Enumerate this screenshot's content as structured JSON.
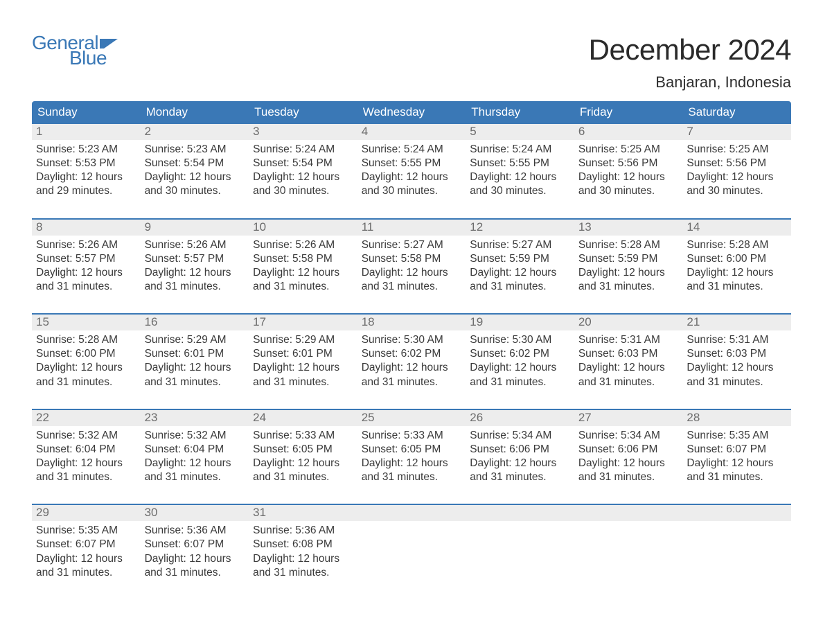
{
  "brand": {
    "line1": "General",
    "line2": "Blue"
  },
  "header": {
    "month_title": "December 2024",
    "location": "Banjaran, Indonesia"
  },
  "colors": {
    "brand_blue": "#3a78b6",
    "header_bg": "#3a78b6",
    "header_fg": "#ffffff",
    "daynum_bg": "#ededed",
    "daynum_fg": "#6c6c6c",
    "text": "#3a3a3a",
    "page_bg": "#ffffff"
  },
  "typography": {
    "month_title_pt": 42,
    "location_pt": 22,
    "dow_pt": 17,
    "daynum_pt": 17,
    "body_pt": 15.5,
    "font_family": "Arial"
  },
  "day_names": [
    "Sunday",
    "Monday",
    "Tuesday",
    "Wednesday",
    "Thursday",
    "Friday",
    "Saturday"
  ],
  "weeks": [
    [
      {
        "n": "1",
        "sunrise": "5:23 AM",
        "sunset": "5:53 PM",
        "daylight": "12 hours and 29 minutes."
      },
      {
        "n": "2",
        "sunrise": "5:23 AM",
        "sunset": "5:54 PM",
        "daylight": "12 hours and 30 minutes."
      },
      {
        "n": "3",
        "sunrise": "5:24 AM",
        "sunset": "5:54 PM",
        "daylight": "12 hours and 30 minutes."
      },
      {
        "n": "4",
        "sunrise": "5:24 AM",
        "sunset": "5:55 PM",
        "daylight": "12 hours and 30 minutes."
      },
      {
        "n": "5",
        "sunrise": "5:24 AM",
        "sunset": "5:55 PM",
        "daylight": "12 hours and 30 minutes."
      },
      {
        "n": "6",
        "sunrise": "5:25 AM",
        "sunset": "5:56 PM",
        "daylight": "12 hours and 30 minutes."
      },
      {
        "n": "7",
        "sunrise": "5:25 AM",
        "sunset": "5:56 PM",
        "daylight": "12 hours and 30 minutes."
      }
    ],
    [
      {
        "n": "8",
        "sunrise": "5:26 AM",
        "sunset": "5:57 PM",
        "daylight": "12 hours and 31 minutes."
      },
      {
        "n": "9",
        "sunrise": "5:26 AM",
        "sunset": "5:57 PM",
        "daylight": "12 hours and 31 minutes."
      },
      {
        "n": "10",
        "sunrise": "5:26 AM",
        "sunset": "5:58 PM",
        "daylight": "12 hours and 31 minutes."
      },
      {
        "n": "11",
        "sunrise": "5:27 AM",
        "sunset": "5:58 PM",
        "daylight": "12 hours and 31 minutes."
      },
      {
        "n": "12",
        "sunrise": "5:27 AM",
        "sunset": "5:59 PM",
        "daylight": "12 hours and 31 minutes."
      },
      {
        "n": "13",
        "sunrise": "5:28 AM",
        "sunset": "5:59 PM",
        "daylight": "12 hours and 31 minutes."
      },
      {
        "n": "14",
        "sunrise": "5:28 AM",
        "sunset": "6:00 PM",
        "daylight": "12 hours and 31 minutes."
      }
    ],
    [
      {
        "n": "15",
        "sunrise": "5:28 AM",
        "sunset": "6:00 PM",
        "daylight": "12 hours and 31 minutes."
      },
      {
        "n": "16",
        "sunrise": "5:29 AM",
        "sunset": "6:01 PM",
        "daylight": "12 hours and 31 minutes."
      },
      {
        "n": "17",
        "sunrise": "5:29 AM",
        "sunset": "6:01 PM",
        "daylight": "12 hours and 31 minutes."
      },
      {
        "n": "18",
        "sunrise": "5:30 AM",
        "sunset": "6:02 PM",
        "daylight": "12 hours and 31 minutes."
      },
      {
        "n": "19",
        "sunrise": "5:30 AM",
        "sunset": "6:02 PM",
        "daylight": "12 hours and 31 minutes."
      },
      {
        "n": "20",
        "sunrise": "5:31 AM",
        "sunset": "6:03 PM",
        "daylight": "12 hours and 31 minutes."
      },
      {
        "n": "21",
        "sunrise": "5:31 AM",
        "sunset": "6:03 PM",
        "daylight": "12 hours and 31 minutes."
      }
    ],
    [
      {
        "n": "22",
        "sunrise": "5:32 AM",
        "sunset": "6:04 PM",
        "daylight": "12 hours and 31 minutes."
      },
      {
        "n": "23",
        "sunrise": "5:32 AM",
        "sunset": "6:04 PM",
        "daylight": "12 hours and 31 minutes."
      },
      {
        "n": "24",
        "sunrise": "5:33 AM",
        "sunset": "6:05 PM",
        "daylight": "12 hours and 31 minutes."
      },
      {
        "n": "25",
        "sunrise": "5:33 AM",
        "sunset": "6:05 PM",
        "daylight": "12 hours and 31 minutes."
      },
      {
        "n": "26",
        "sunrise": "5:34 AM",
        "sunset": "6:06 PM",
        "daylight": "12 hours and 31 minutes."
      },
      {
        "n": "27",
        "sunrise": "5:34 AM",
        "sunset": "6:06 PM",
        "daylight": "12 hours and 31 minutes."
      },
      {
        "n": "28",
        "sunrise": "5:35 AM",
        "sunset": "6:07 PM",
        "daylight": "12 hours and 31 minutes."
      }
    ],
    [
      {
        "n": "29",
        "sunrise": "5:35 AM",
        "sunset": "6:07 PM",
        "daylight": "12 hours and 31 minutes."
      },
      {
        "n": "30",
        "sunrise": "5:36 AM",
        "sunset": "6:07 PM",
        "daylight": "12 hours and 31 minutes."
      },
      {
        "n": "31",
        "sunrise": "5:36 AM",
        "sunset": "6:08 PM",
        "daylight": "12 hours and 31 minutes."
      },
      null,
      null,
      null,
      null
    ]
  ],
  "labels": {
    "sunrise_prefix": "Sunrise: ",
    "sunset_prefix": "Sunset: ",
    "daylight_prefix": "Daylight: "
  }
}
